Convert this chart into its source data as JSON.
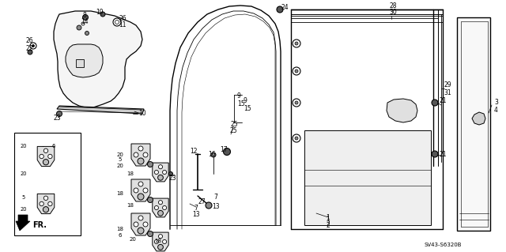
{
  "bg_color": "#ffffff",
  "line_color": "#000000",
  "fig_width": 6.4,
  "fig_height": 3.19,
  "dpi": 100,
  "part_code": "SV43-S6320B"
}
